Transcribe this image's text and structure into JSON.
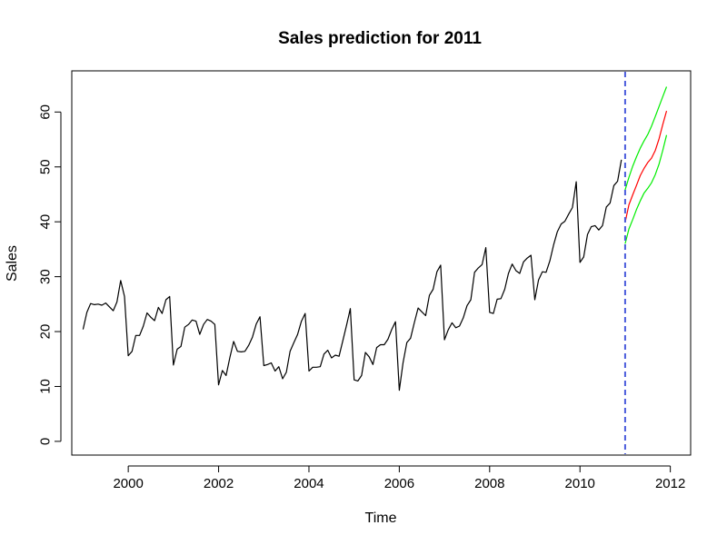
{
  "chart_data": {
    "type": "line",
    "title": "Sales prediction for 2011",
    "xlabel": "Time",
    "ylabel": "Sales",
    "xlim": [
      1998.75,
      2012.45
    ],
    "ylim": [
      -2.5,
      67.5
    ],
    "x_ticks": [
      "2000",
      "2002",
      "2004",
      "2006",
      "2008",
      "2010",
      "2012"
    ],
    "y_ticks": [
      "0",
      "10",
      "20",
      "30",
      "40",
      "50",
      "60"
    ],
    "grid": false,
    "legend": "none",
    "forecast_start": 2011.0,
    "colors": {
      "observed": "#000000",
      "forecast": "#ff0000",
      "interval": "#00ee00",
      "divider": "#4a5bdc",
      "frame": "#000000"
    },
    "series": [
      {
        "role": "observed",
        "x_start": 1999.0,
        "x_step": 0.08333,
        "values": [
          20.4,
          23.5,
          25.1,
          24.9,
          25.0,
          24.8,
          25.2,
          24.5,
          23.8,
          25.4,
          29.3,
          26.4,
          15.6,
          16.4,
          19.3,
          19.3,
          21.0,
          23.4,
          22.6,
          22.0,
          24.4,
          23.3,
          25.8,
          26.4,
          13.9,
          16.8,
          17.3,
          20.8,
          21.3,
          22.1,
          21.9,
          19.5,
          21.3,
          22.2,
          21.9,
          21.3,
          10.3,
          12.9,
          12.0,
          15.3,
          18.2,
          16.4,
          16.3,
          16.4,
          17.5,
          19.0,
          21.4,
          22.7,
          13.8,
          14.0,
          14.3,
          12.8,
          13.6,
          11.4,
          12.6,
          16.4,
          18.0,
          19.5,
          21.9,
          23.3,
          12.8,
          13.5,
          13.5,
          13.6,
          15.9,
          16.6,
          15.2,
          15.7,
          15.5,
          18.3,
          21.2,
          24.2,
          11.2,
          11.0,
          12.0,
          16.2,
          15.4,
          14.0,
          17.1,
          17.6,
          17.6,
          18.6,
          20.4,
          21.8,
          9.3,
          14.3,
          18.0,
          18.8,
          21.6,
          24.3,
          23.6,
          22.9,
          26.6,
          27.7,
          30.9,
          32.1,
          18.5,
          20.3,
          21.6,
          20.7,
          21.0,
          22.5,
          24.7,
          25.8,
          30.8,
          31.6,
          32.2,
          35.3,
          23.5,
          23.3,
          25.9,
          26.0,
          27.7,
          30.6,
          32.3,
          31.1,
          30.6,
          32.7,
          33.4,
          33.9,
          25.8,
          29.4,
          30.9,
          30.8,
          32.9,
          35.8,
          38.2,
          39.6,
          40.1,
          41.4,
          42.6,
          47.3,
          32.6,
          33.6,
          37.7,
          39.1,
          39.3,
          38.5,
          39.3,
          42.7,
          43.4,
          46.6,
          47.4,
          51.3
        ]
      },
      {
        "role": "forecast",
        "x_start": 2011.0,
        "x_step": 0.08333,
        "values": [
          39.9,
          43.1,
          44.9,
          46.6,
          48.4,
          49.7,
          50.8,
          51.6,
          53.0,
          55.1,
          57.7,
          60.2
        ]
      },
      {
        "role": "upper-interval",
        "x_start": 2011.0,
        "x_step": 0.08333,
        "values": [
          45.8,
          48.1,
          50.1,
          51.8,
          53.4,
          54.7,
          55.9,
          57.4,
          59.2,
          61.0,
          62.8,
          64.6
        ]
      },
      {
        "role": "lower-interval",
        "x_start": 2011.0,
        "x_step": 0.08333,
        "values": [
          36.0,
          38.7,
          40.4,
          42.2,
          43.8,
          45.2,
          46.1,
          47.1,
          48.6,
          50.5,
          53.0,
          55.8
        ]
      }
    ]
  }
}
